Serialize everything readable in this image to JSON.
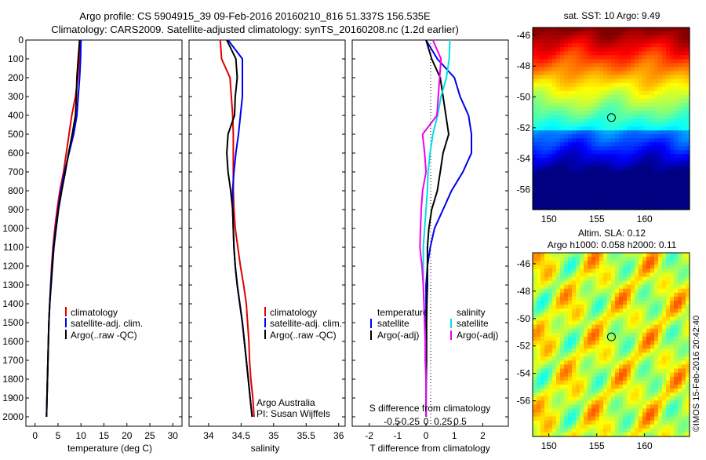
{
  "header": {
    "line1": "Argo profile: CS 5904915_39 09-Feb-2016 20160210_816 51.337S 156.535E",
    "line2": "Climatology: CARS2009. Satellite-adjusted climatology: synTS_20160208.nc (1.2d earlier)"
  },
  "colors": {
    "climatology": "#e00000",
    "satellite": "#0000ee",
    "argo": "#000000",
    "sal_satellite": "#00e0e0",
    "sal_argo": "#ee00ee"
  },
  "credits": {
    "line1": "Argo Australia",
    "line2": "PI: Susan Wijffels"
  },
  "stamp": "©IMOS 15-Feb-2016 20:42:40",
  "chart_data": [
    {
      "type": "line",
      "xlabel": "temperature (deg C)",
      "xlim": [
        -2,
        32
      ],
      "xticks": [
        0,
        5,
        10,
        15,
        20,
        25,
        30
      ],
      "ylim": [
        2050,
        0
      ],
      "yticks": [
        0,
        100,
        200,
        300,
        400,
        500,
        600,
        700,
        800,
        900,
        1000,
        1100,
        1200,
        1300,
        1400,
        1500,
        1600,
        1700,
        1800,
        1900,
        2000
      ],
      "legend": [
        "climatology",
        "satellite-adj. clim.",
        "Argo(..raw -QC)"
      ],
      "series": [
        {
          "name": "climatology",
          "color": "#e00000",
          "x": [
            9.8,
            9.6,
            9.3,
            8.8,
            8.0,
            7.4,
            6.8,
            6.2,
            5.4,
            4.8,
            4.3,
            3.9,
            3.6,
            3.4,
            3.2,
            3.0,
            2.9,
            2.8,
            2.7,
            2.6,
            2.5
          ],
          "y": [
            0,
            100,
            200,
            300,
            400,
            500,
            600,
            700,
            800,
            900,
            1000,
            1100,
            1200,
            1300,
            1400,
            1500,
            1600,
            1700,
            1800,
            1900,
            2000
          ]
        },
        {
          "name": "satellite-adj. clim.",
          "color": "#0000ee",
          "x": [
            10.0,
            9.9,
            9.7,
            9.4,
            9.1,
            8.4,
            7.4,
            6.4,
            5.6,
            5.0,
            4.5,
            4.0,
            3.7,
            3.4,
            3.2,
            3.0,
            2.9,
            2.8,
            2.7,
            2.6,
            2.5
          ],
          "y": [
            0,
            100,
            200,
            300,
            400,
            500,
            600,
            700,
            800,
            900,
            1000,
            1100,
            1200,
            1300,
            1400,
            1500,
            1600,
            1700,
            1800,
            1900,
            2000
          ]
        },
        {
          "name": "Argo(..raw -QC)",
          "color": "#000000",
          "x": [
            9.7,
            9.4,
            9.1,
            9.0,
            8.8,
            8.1,
            7.3,
            6.6,
            5.8,
            5.1,
            4.6,
            4.1,
            3.8,
            3.5,
            3.2,
            3.0,
            2.9,
            2.8,
            2.7,
            2.6,
            2.5
          ],
          "y": [
            0,
            100,
            200,
            300,
            400,
            500,
            600,
            700,
            800,
            900,
            1000,
            1100,
            1200,
            1300,
            1400,
            1500,
            1600,
            1700,
            1800,
            1900,
            2000
          ]
        }
      ]
    },
    {
      "type": "line",
      "xlabel": "salinity",
      "xlim": [
        33.7,
        36.1
      ],
      "xticks": [
        34,
        34.5,
        35,
        35.5,
        36
      ],
      "ylim": [
        2050,
        0
      ],
      "legend": [
        "climatology",
        "satellite-adj. clim.",
        "Argo(..raw -QC)"
      ],
      "series": [
        {
          "name": "climatology",
          "color": "#e00000",
          "x": [
            34.18,
            34.2,
            34.33,
            34.35,
            34.37,
            34.38,
            34.38,
            34.38,
            34.38,
            34.39,
            34.41,
            34.45,
            34.49,
            34.54,
            34.58,
            34.6,
            34.62,
            34.63,
            34.65,
            34.68,
            34.7
          ],
          "y": [
            0,
            100,
            200,
            300,
            400,
            500,
            600,
            700,
            800,
            900,
            1000,
            1100,
            1200,
            1300,
            1400,
            1500,
            1600,
            1700,
            1800,
            1900,
            2000
          ]
        },
        {
          "name": "satellite-adj. clim.",
          "color": "#0000ee",
          "x": [
            34.3,
            34.52,
            34.52,
            34.52,
            34.49,
            34.46,
            34.42,
            34.39,
            34.37,
            34.37,
            34.38,
            34.39,
            34.41,
            34.44,
            34.48,
            34.52,
            34.55,
            34.58,
            34.61,
            34.64,
            34.67
          ],
          "y": [
            0,
            100,
            200,
            300,
            400,
            500,
            600,
            700,
            800,
            900,
            1000,
            1100,
            1200,
            1300,
            1400,
            1500,
            1600,
            1700,
            1800,
            1900,
            2000
          ]
        },
        {
          "name": "Argo(..raw -QC)",
          "color": "#000000",
          "x": [
            34.28,
            34.42,
            34.44,
            34.41,
            34.4,
            34.3,
            34.28,
            34.3,
            34.34,
            34.37,
            34.38,
            34.39,
            34.41,
            34.44,
            34.48,
            34.52,
            34.55,
            34.58,
            34.61,
            34.64,
            34.67
          ],
          "y": [
            0,
            100,
            200,
            300,
            400,
            500,
            600,
            700,
            800,
            900,
            1000,
            1100,
            1200,
            1300,
            1400,
            1500,
            1600,
            1700,
            1800,
            1900,
            2000
          ]
        }
      ]
    },
    {
      "type": "line",
      "xlabel": "T difference from climatology",
      "xlabel_top": "S difference from climatology",
      "xlim": [
        -2.6,
        2.9
      ],
      "xticks": [
        -2,
        -1,
        0,
        1,
        2
      ],
      "xticks_top": [
        -0.5,
        -0.25,
        0,
        0.25,
        0.5
      ],
      "ylim": [
        2050,
        0
      ],
      "legend_temperature_title": "temperature",
      "legend_temperature": [
        "satellite",
        "Argo(-adj)"
      ],
      "legend_salinity_title": "salinity",
      "legend_salinity": [
        "satellite",
        "Argo(-adj)"
      ],
      "series": [
        {
          "name": "satellite",
          "color": "#0000ee",
          "x": [
            0.0,
            0.4,
            1.0,
            1.2,
            1.5,
            1.6,
            1.6,
            1.3,
            0.9,
            0.6,
            0.3,
            0.15,
            0.05,
            0.0,
            0.0,
            0.0,
            0.0,
            0.0,
            0.0,
            0.0,
            0.0
          ],
          "y": [
            0,
            100,
            200,
            300,
            400,
            500,
            600,
            700,
            800,
            900,
            1000,
            1100,
            1200,
            1300,
            1400,
            1500,
            1600,
            1700,
            1800,
            1900,
            2000
          ]
        },
        {
          "name": "Argo(-adj)",
          "color": "#000000",
          "x": [
            0.0,
            0.2,
            0.5,
            0.6,
            0.7,
            0.8,
            0.6,
            0.5,
            0.4,
            0.2,
            0.1,
            0.05,
            0.05,
            0.05,
            0.03,
            0.02,
            0.02,
            0.02,
            0.01,
            0.0,
            0.0
          ],
          "y": [
            0,
            100,
            200,
            300,
            400,
            500,
            600,
            700,
            800,
            900,
            1000,
            1100,
            1200,
            1300,
            1400,
            1500,
            1600,
            1700,
            1800,
            1900,
            2000
          ]
        },
        {
          "name": "satellite",
          "color": "#00e0e0",
          "x": [
            0.35,
            0.34,
            0.3,
            0.22,
            0.17,
            0.1,
            0.06,
            0.03,
            0.02,
            0.0,
            -0.02,
            -0.04,
            -0.04,
            -0.04,
            -0.03,
            -0.02,
            -0.01,
            -0.01,
            0.0,
            0.0,
            0.0
          ],
          "y": [
            0,
            100,
            200,
            300,
            400,
            500,
            600,
            700,
            800,
            900,
            1000,
            1100,
            1200,
            1300,
            1400,
            1500,
            1600,
            1700,
            1800,
            1900,
            2000
          ]
        },
        {
          "name": "Argo(-adj)",
          "color": "#ee00ee",
          "x": [
            0.1,
            0.22,
            0.2,
            0.18,
            0.16,
            -0.05,
            -0.02,
            0.0,
            -0.05,
            -0.07,
            -0.08,
            -0.09,
            -0.06,
            -0.04,
            -0.03,
            -0.02,
            -0.01,
            -0.01,
            0.0,
            0.0,
            0.0
          ],
          "y": [
            0,
            100,
            200,
            300,
            400,
            500,
            600,
            700,
            800,
            900,
            1000,
            1100,
            1200,
            1300,
            1400,
            1500,
            1600,
            1700,
            1800,
            1900,
            2000
          ]
        }
      ]
    },
    {
      "type": "heatmap",
      "title": "sat. SST: 10 Argo: 9.49",
      "xticks": [
        150,
        155,
        160
      ],
      "yticks": [
        -46,
        -48,
        -50,
        -52,
        -54,
        -56
      ],
      "xlim": [
        148.3,
        164.7
      ],
      "ylim": [
        -57.3,
        -45.5
      ],
      "marker": {
        "lon": 156.535,
        "lat": -51.337
      }
    },
    {
      "type": "heatmap",
      "title": "Altim. SLA: 0.12",
      "subtitle": "Argo h1000: 0.058 h2000: 0.11",
      "xticks": [
        150,
        155,
        160
      ],
      "yticks": [
        -46,
        -48,
        -50,
        -52,
        -54,
        -56
      ],
      "xlim": [
        148.3,
        164.7
      ],
      "ylim": [
        -58.6,
        -45.2
      ],
      "marker": {
        "lon": 156.535,
        "lat": -51.337
      }
    }
  ]
}
